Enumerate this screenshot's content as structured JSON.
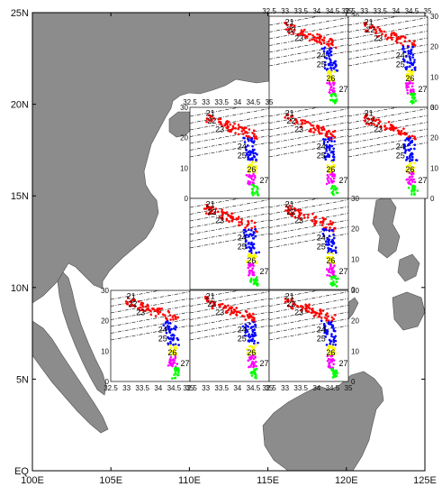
{
  "chart_data": {
    "type": "map",
    "map": {
      "lon_range": [
        100,
        125
      ],
      "lat_range": [
        0,
        25
      ],
      "x_ticks": [
        "100E",
        "105E",
        "110E",
        "115E",
        "120E",
        "125E"
      ],
      "y_ticks": [
        "EQ",
        "5N",
        "10N",
        "15N",
        "20N",
        "25N"
      ],
      "land_color": "#8c8c8c",
      "sea_color": "#ffffff"
    },
    "inset_axes": {
      "type": "scatter",
      "x_ticks": [
        "32.5",
        "33",
        "33.5",
        "34",
        "34.5",
        "35"
      ],
      "y_ticks": [
        "0",
        "10",
        "20",
        "30"
      ],
      "xlim": [
        32.5,
        35
      ],
      "ylim": [
        0,
        30
      ],
      "density_labels": [
        "21",
        "22",
        "23",
        "24",
        "25",
        "26",
        "27"
      ],
      "series_colors": [
        "#ff0000",
        "#0000ff",
        "#ffff00",
        "#ff00ff",
        "#00ff00"
      ]
    },
    "panels": [
      {
        "id": "p-116-22"
      },
      {
        "id": "p-120-22"
      },
      {
        "id": "p-110-18"
      },
      {
        "id": "p-114-18"
      },
      {
        "id": "p-118-18"
      },
      {
        "id": "p-110-14"
      },
      {
        "id": "p-114-14"
      },
      {
        "id": "p-108-10"
      },
      {
        "id": "p-110-10"
      },
      {
        "id": "p-114-10"
      }
    ]
  }
}
